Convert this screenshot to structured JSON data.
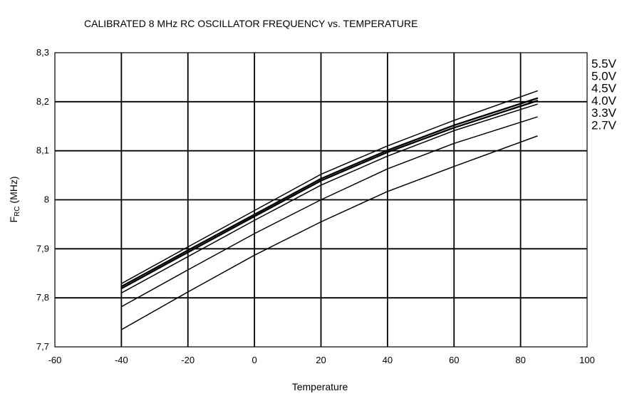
{
  "chart_data": {
    "type": "line",
    "title": "CALIBRATED 8 MHz RC OSCILLATOR FREQUENCY vs. TEMPERATURE",
    "xlabel": "Temperature",
    "ylabel_main": "F",
    "ylabel_sub": "RC",
    "ylabel_unit": " (MHz)",
    "xlim": [
      -60,
      100
    ],
    "ylim": [
      7.7,
      8.3
    ],
    "grid": true,
    "legend_placement": "right",
    "x_ticks": [
      {
        "value": -60,
        "label": "-60"
      },
      {
        "value": -40,
        "label": "-40"
      },
      {
        "value": -20,
        "label": "-20"
      },
      {
        "value": 0,
        "label": "0"
      },
      {
        "value": 20,
        "label": "20"
      },
      {
        "value": 40,
        "label": "40"
      },
      {
        "value": 60,
        "label": "60"
      },
      {
        "value": 80,
        "label": "80"
      },
      {
        "value": 100,
        "label": "100"
      }
    ],
    "y_ticks": [
      {
        "value": 7.7,
        "label": "7,7"
      },
      {
        "value": 7.8,
        "label": "7,8"
      },
      {
        "value": 7.9,
        "label": "7,9"
      },
      {
        "value": 8.0,
        "label": "8"
      },
      {
        "value": 8.1,
        "label": "8,1"
      },
      {
        "value": 8.2,
        "label": "8,2"
      },
      {
        "value": 8.3,
        "label": "8,3"
      }
    ],
    "x": [
      -40,
      -20,
      0,
      20,
      40,
      60,
      85
    ],
    "series": [
      {
        "name": "5.5V",
        "values": [
          7.829,
          7.904,
          7.978,
          8.052,
          8.11,
          8.162,
          8.222
        ],
        "bold": false
      },
      {
        "name": "5.0V",
        "values": [
          7.823,
          7.897,
          7.97,
          8.043,
          8.101,
          8.152,
          8.207
        ],
        "bold": true
      },
      {
        "name": "4.5V",
        "values": [
          7.819,
          7.893,
          7.966,
          8.039,
          8.097,
          8.147,
          8.202
        ],
        "bold": true
      },
      {
        "name": "4.0V",
        "values": [
          7.81,
          7.884,
          7.958,
          8.03,
          8.089,
          8.141,
          8.195
        ],
        "bold": false
      },
      {
        "name": "3.3V",
        "values": [
          7.782,
          7.857,
          7.931,
          8.0,
          8.063,
          8.115,
          8.169
        ],
        "bold": false
      },
      {
        "name": "2.7V",
        "values": [
          7.735,
          7.812,
          7.887,
          7.955,
          8.017,
          8.068,
          8.13
        ],
        "bold": false
      }
    ],
    "colors": {
      "line": "#000000",
      "grid": "#000000",
      "background": "#ffffff"
    }
  }
}
